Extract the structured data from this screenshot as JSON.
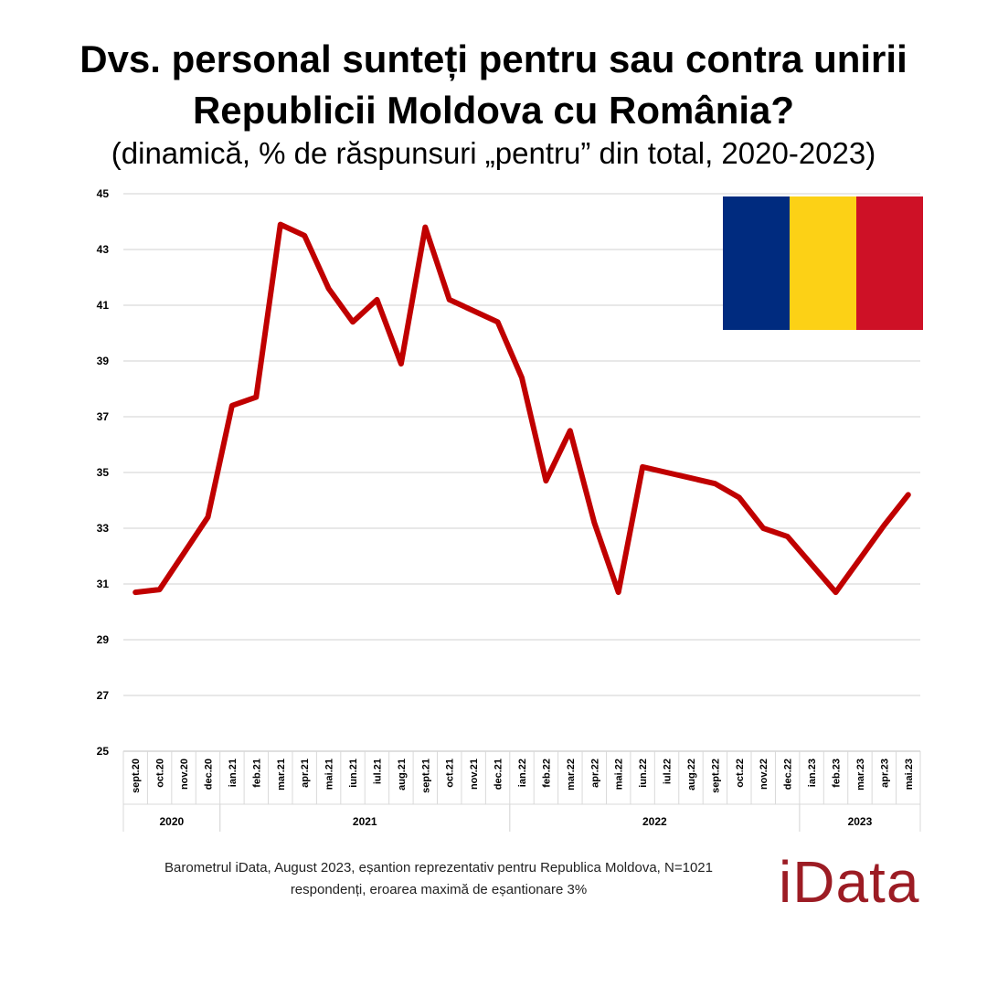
{
  "title_line1": "Dvs. personal sunteți pentru sau contra unirii",
  "title_line2": "Republicii Moldova cu România?",
  "subtitle": "(dinamică, % de răspunsuri „pentru” din total, 2020-2023)",
  "source_line1": "Barometrul iData, August 2023, eșantion reprezentativ pentru Republica Moldova, N=1021",
  "source_line2": "respondenți, eroarea maximă de eșantionare 3%",
  "logo_text": "iData",
  "flag_colors": [
    "#002b7f",
    "#fcd116",
    "#ce1126"
  ],
  "chart_data": {
    "type": "line",
    "title": "Dvs. personal sunteți pentru sau contra unirii Republicii Moldova cu România?",
    "subtitle": "(dinamică, % de răspunsuri „pentru” din total, 2020-2023)",
    "xlabel": "",
    "ylabel": "",
    "ylim": [
      25,
      45
    ],
    "yticks": [
      25,
      27,
      29,
      31,
      33,
      35,
      37,
      39,
      41,
      43,
      45
    ],
    "grid": true,
    "line_color": "#c00000",
    "categories": [
      "sept.20",
      "oct.20",
      "nov.20",
      "dec.20",
      "ian.21",
      "feb.21",
      "mar.21",
      "apr.21",
      "mai.21",
      "iun.21",
      "iul.21",
      "aug.21",
      "sept.21",
      "oct.21",
      "nov.21",
      "dec.21",
      "ian.22",
      "feb.22",
      "mar.22",
      "apr.22",
      "mai.22",
      "iun.22",
      "iul.22",
      "aug.22",
      "sept.22",
      "oct.22",
      "nov.22",
      "dec.22",
      "ian.23",
      "feb.23",
      "mar.23",
      "apr.23",
      "mai.23"
    ],
    "values": [
      30.7,
      30.8,
      32.1,
      33.4,
      37.4,
      37.7,
      43.9,
      43.5,
      41.6,
      40.4,
      41.2,
      38.9,
      43.8,
      41.2,
      40.8,
      40.4,
      38.4,
      34.7,
      36.5,
      33.2,
      30.7,
      35.2,
      35.0,
      34.8,
      34.6,
      34.1,
      33.0,
      32.7,
      31.7,
      30.7,
      31.9,
      33.1,
      34.2
    ],
    "year_groups": [
      {
        "label": "2020",
        "start": 0,
        "end": 3
      },
      {
        "label": "2021",
        "start": 4,
        "end": 15
      },
      {
        "label": "2022",
        "start": 16,
        "end": 27
      },
      {
        "label": "2023",
        "start": 28,
        "end": 32
      }
    ]
  }
}
